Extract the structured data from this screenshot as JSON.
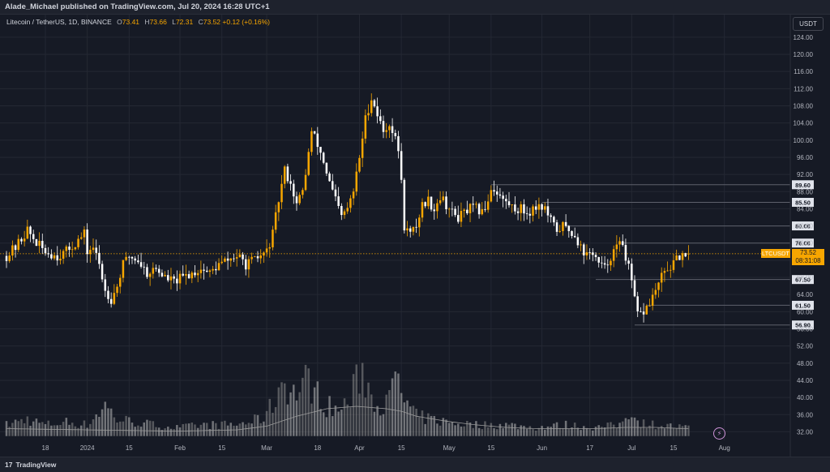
{
  "header": {
    "publisher": "Alade_Michael published on TradingView.com, Jul 20, 2024 16:28 UTC+1"
  },
  "legend": {
    "symbol": "Litecoin / TetherUS, 1D, BINANCE",
    "o_label": "O",
    "o": "73.41",
    "h_label": "H",
    "h": "73.66",
    "l_label": "L",
    "l": "72.31",
    "c_label": "C",
    "c": "73.52",
    "change": "+0.12 (+0.16%)"
  },
  "currency_button": "USDT",
  "footer": {
    "brand": "TradingView",
    "brand_mark": "17"
  },
  "price_label": {
    "ticker": "LTCUSDT",
    "price": "73.52",
    "countdown": "08:31:08"
  },
  "colors": {
    "up": "#f7a600",
    "down": "#ffffff",
    "background": "#161a25",
    "grid": "#242833",
    "level_line": "#5d606b",
    "volume_up": "#8c8c8c",
    "volume_down": "#bdbdbd",
    "volume_ma": "#9b9b9b"
  },
  "chart_data": {
    "type": "candlestick",
    "title": "Litecoin / TetherUS, 1D, BINANCE",
    "y_axis": {
      "min": 30,
      "max": 127,
      "side": "right",
      "ticks": [
        "124.00",
        "120.00",
        "116.00",
        "112.00",
        "108.00",
        "104.00",
        "100.00",
        "96.00",
        "92.00",
        "88.00",
        "84.00",
        "80.00",
        "76.00",
        "72.00",
        "68.00",
        "64.00",
        "60.00",
        "56.00",
        "52.00",
        "48.00",
        "44.00",
        "40.00",
        "36.00",
        "32.00"
      ]
    },
    "x_axis": {
      "labels": [
        "18",
        "2024",
        "15",
        "Feb",
        "15",
        "Mar",
        "18",
        "Apr",
        "15",
        "May",
        "15",
        "Jun",
        "17",
        "Jul",
        "15",
        "Aug"
      ],
      "label_days": [
        -14,
        0,
        14,
        31,
        45,
        60,
        77,
        91,
        105,
        121,
        135,
        152,
        168,
        182,
        196,
        213
      ]
    },
    "price_levels": [
      {
        "label": "89.60",
        "value": 89.6,
        "start_day": 135
      },
      {
        "label": "85.50",
        "value": 85.5,
        "start_day": 152
      },
      {
        "label": "80.00",
        "value": 80.0,
        "start_day": 160
      },
      {
        "label": "76.00",
        "value": 76.0,
        "start_day": 178
      },
      {
        "label": "67.50",
        "value": 67.5,
        "start_day": 170
      },
      {
        "label": "61.50",
        "value": 61.5,
        "start_day": 187
      },
      {
        "label": "56.90",
        "value": 56.9,
        "start_day": 183
      }
    ],
    "last_price": 73.52,
    "price_path": [
      [
        -27,
        73
      ],
      [
        -24,
        75
      ],
      [
        -20,
        79
      ],
      [
        -17,
        76
      ],
      [
        -14,
        74
      ],
      [
        -10,
        73
      ],
      [
        -7,
        74
      ],
      [
        -4,
        76
      ],
      [
        -1,
        78
      ],
      [
        0,
        74
      ],
      [
        2,
        75
      ],
      [
        4,
        71
      ],
      [
        6,
        65
      ],
      [
        8,
        63
      ],
      [
        10,
        66
      ],
      [
        12,
        71
      ],
      [
        14,
        73
      ],
      [
        17,
        72
      ],
      [
        20,
        69
      ],
      [
        23,
        70
      ],
      [
        26,
        68
      ],
      [
        29,
        67
      ],
      [
        32,
        68
      ],
      [
        35,
        69
      ],
      [
        38,
        70
      ],
      [
        41,
        69
      ],
      [
        44,
        71
      ],
      [
        47,
        72
      ],
      [
        50,
        73
      ],
      [
        53,
        71
      ],
      [
        56,
        72
      ],
      [
        58,
        73
      ],
      [
        60,
        74
      ],
      [
        62,
        78
      ],
      [
        64,
        86
      ],
      [
        66,
        93
      ],
      [
        68,
        90
      ],
      [
        70,
        85
      ],
      [
        72,
        88
      ],
      [
        74,
        97
      ],
      [
        75,
        102
      ],
      [
        77,
        99
      ],
      [
        79,
        95
      ],
      [
        81,
        90
      ],
      [
        83,
        86
      ],
      [
        85,
        82
      ],
      [
        87,
        84
      ],
      [
        89,
        88
      ],
      [
        91,
        96
      ],
      [
        93,
        105
      ],
      [
        95,
        110
      ],
      [
        97,
        106
      ],
      [
        99,
        102
      ],
      [
        101,
        104
      ],
      [
        103,
        100
      ],
      [
        104,
        98
      ],
      [
        105,
        90
      ],
      [
        106,
        80
      ],
      [
        108,
        78
      ],
      [
        110,
        80
      ],
      [
        112,
        85
      ],
      [
        114,
        86
      ],
      [
        116,
        84
      ],
      [
        118,
        87
      ],
      [
        120,
        85
      ],
      [
        122,
        83
      ],
      [
        124,
        82
      ],
      [
        126,
        83
      ],
      [
        128,
        84
      ],
      [
        130,
        84
      ],
      [
        132,
        83
      ],
      [
        134,
        86
      ],
      [
        135,
        89
      ],
      [
        137,
        88
      ],
      [
        139,
        86
      ],
      [
        141,
        85
      ],
      [
        143,
        84
      ],
      [
        145,
        84
      ],
      [
        147,
        83
      ],
      [
        149,
        84
      ],
      [
        151,
        85
      ],
      [
        153,
        84
      ],
      [
        155,
        81
      ],
      [
        157,
        79
      ],
      [
        159,
        80
      ],
      [
        161,
        79
      ],
      [
        163,
        78
      ],
      [
        165,
        75
      ],
      [
        167,
        73
      ],
      [
        169,
        74
      ],
      [
        171,
        71
      ],
      [
        173,
        70
      ],
      [
        175,
        73
      ],
      [
        177,
        75
      ],
      [
        179,
        76
      ],
      [
        181,
        70
      ],
      [
        183,
        63
      ],
      [
        184,
        59
      ],
      [
        186,
        60
      ],
      [
        188,
        62
      ],
      [
        190,
        65
      ],
      [
        192,
        68
      ],
      [
        194,
        70
      ],
      [
        196,
        71
      ],
      [
        198,
        73
      ],
      [
        200,
        72
      ],
      [
        201,
        73.52
      ]
    ],
    "volume_axis": {
      "min": 31,
      "max": 75
    },
    "volume_profile": [
      [
        -27,
        35
      ],
      [
        -20,
        37
      ],
      [
        -14,
        35
      ],
      [
        -7,
        36
      ],
      [
        0,
        35
      ],
      [
        6,
        42
      ],
      [
        10,
        37
      ],
      [
        16,
        36
      ],
      [
        22,
        35
      ],
      [
        30,
        34
      ],
      [
        40,
        35
      ],
      [
        50,
        35
      ],
      [
        58,
        37
      ],
      [
        62,
        42
      ],
      [
        64,
        48
      ],
      [
        66,
        52
      ],
      [
        68,
        46
      ],
      [
        72,
        48
      ],
      [
        74,
        52
      ],
      [
        76,
        47
      ],
      [
        80,
        42
      ],
      [
        84,
        40
      ],
      [
        88,
        44
      ],
      [
        90,
        50
      ],
      [
        92,
        55
      ],
      [
        94,
        48
      ],
      [
        96,
        44
      ],
      [
        100,
        42
      ],
      [
        104,
        52
      ],
      [
        106,
        43
      ],
      [
        110,
        38
      ],
      [
        120,
        36
      ],
      [
        130,
        35
      ],
      [
        140,
        35
      ],
      [
        150,
        34
      ],
      [
        160,
        35
      ],
      [
        170,
        34
      ],
      [
        178,
        35
      ],
      [
        182,
        41
      ],
      [
        184,
        36
      ],
      [
        190,
        35
      ],
      [
        200,
        34
      ]
    ],
    "volume_ma": [
      [
        -27,
        34
      ],
      [
        0,
        33.5
      ],
      [
        30,
        33
      ],
      [
        50,
        33.5
      ],
      [
        60,
        35
      ],
      [
        70,
        39
      ],
      [
        80,
        42
      ],
      [
        90,
        43
      ],
      [
        100,
        42
      ],
      [
        105,
        41
      ],
      [
        110,
        39
      ],
      [
        120,
        37
      ],
      [
        130,
        35.5
      ],
      [
        140,
        34.5
      ],
      [
        150,
        34
      ],
      [
        160,
        34
      ],
      [
        170,
        34
      ],
      [
        180,
        34.5
      ],
      [
        190,
        34.5
      ],
      [
        200,
        34
      ]
    ]
  }
}
